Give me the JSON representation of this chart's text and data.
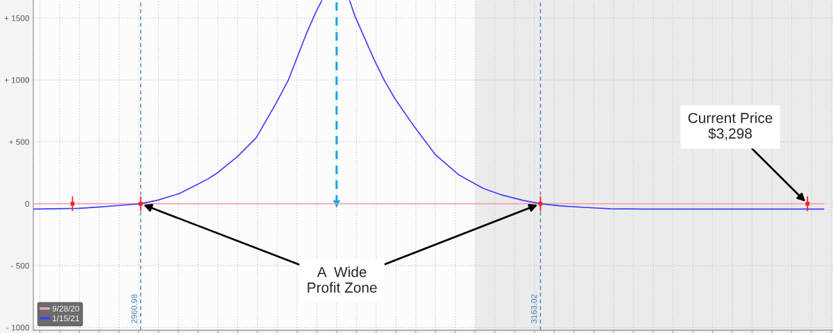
{
  "chart_data": {
    "type": "line",
    "xlim": [
      2906.7,
      3310.9
    ],
    "xticks": [
      2910,
      2920,
      2930,
      2940,
      2950,
      2960,
      2970,
      2980,
      2990,
      3000,
      3010,
      3020,
      3030,
      3040,
      3050,
      3060,
      3070,
      3080,
      3090,
      3100,
      3110,
      3120,
      3130,
      3140,
      3150,
      3160,
      3170,
      3180,
      3190,
      3200,
      3210,
      3220,
      3230,
      3240,
      3250,
      3260,
      3270,
      3280,
      3290,
      3300,
      3310
    ],
    "ylim": [
      -1022,
      1646
    ],
    "yticks": [
      {
        "value": 1500,
        "label": "+ 1500"
      },
      {
        "value": 1000,
        "label": "+ 1000"
      },
      {
        "value": 500,
        "label": "+ 500"
      },
      0,
      {
        "value": -500,
        "label": "- 500"
      },
      {
        "value": -1000,
        "label": "- 1000"
      }
    ],
    "tick_labels": "y",
    "grid": true,
    "legend": "bottom left",
    "series": [
      {
        "name": "9/28/20",
        "color": "#f2a3b5",
        "x": [
          2907,
          3060,
          3306.3
        ],
        "values": [
          0,
          0,
          0
        ]
      },
      {
        "name": "1/15/21",
        "color": "#3c3cff",
        "x": [
          2907,
          2929.6,
          2940.1,
          2950.7,
          2960.98,
          2969.4,
          2980.3,
          2989.7,
          2995.1,
          2999.2,
          3010.0,
          3019.4,
          3029.5,
          3035.6,
          3045.0,
          3049.8,
          3052.5,
          3060,
          3066.6,
          3069.3,
          3078.8,
          3084.0,
          3089.6,
          3099.0,
          3110.0,
          3121.9,
          3134.1,
          3143.6,
          3154.3,
          3163.02,
          3173.3,
          3185.6,
          3197.9,
          3215.1,
          3306.2
        ],
        "values": [
          -43,
          -38,
          -26,
          -13,
          0,
          28,
          81,
          157,
          202,
          243,
          383,
          534,
          814,
          999,
          1385,
          1558,
          1640,
          null,
          1640,
          1515,
          1170,
          999,
          846,
          628,
          395,
          232,
          124,
          70,
          27,
          0,
          -18,
          -30,
          -40,
          -43,
          -43
        ]
      },
      {
        "type": "scatter",
        "marker": "square",
        "color": "#ff2020",
        "x": [
          2926.5,
          2960.98,
          3163.02,
          3298
        ],
        "values": [
          0,
          0,
          0,
          0
        ],
        "errors": [
          60,
          60,
          60,
          60
        ]
      }
    ],
    "bands": [
      {
        "axis": "x",
        "from": 3130.2,
        "to": 3310.9,
        "color": "#ebebeb"
      }
    ],
    "ref_lines": [
      {
        "axis": "x",
        "value": 2960.98,
        "label": "2960.98",
        "color": "#4a7fbf",
        "line_style": "dashed"
      },
      {
        "axis": "x",
        "value": 3163.02,
        "label": "3163.02",
        "color": "#4a7fbf",
        "line_style": "dashed"
      },
      {
        "axis": "x",
        "value": 3060,
        "color": "#12a5e6",
        "line_style": "dashed"
      }
    ],
    "annotations": [
      {
        "text": "A  Wide\nProfit Zone",
        "x": 2960.98,
        "y": 0
      },
      {
        "text": "Current Price\n$3,298",
        "x": 3298,
        "y": 0
      }
    ]
  }
}
